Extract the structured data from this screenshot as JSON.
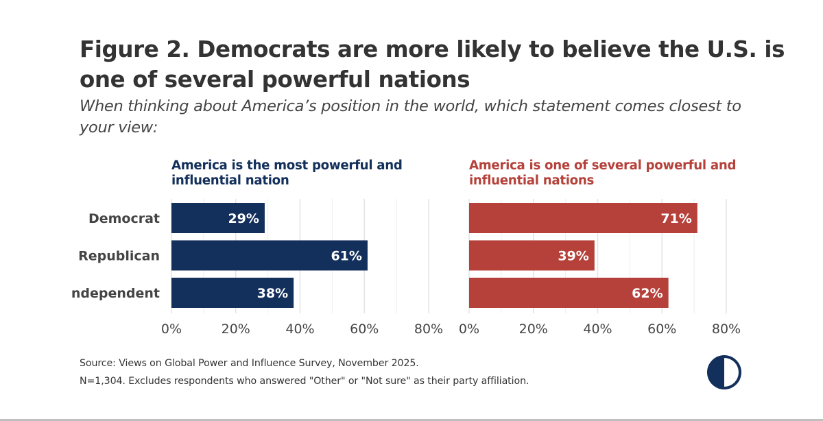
{
  "title": "Figure 2. Democrats are more likely to believe the U.S. is one of several powerful nations",
  "subtitle": "When thinking about America’s position in the world, which statement comes closest to your view:",
  "colors": {
    "navy": "#132f5b",
    "red": "#b5413a",
    "grid": "#e3e3e3",
    "text": "#333333"
  },
  "chart_data": [
    {
      "type": "bar",
      "orientation": "horizontal",
      "title": "America is the most powerful and influential nation",
      "title_lines": [
        "America is the most powerful and",
        "influential nation"
      ],
      "categories": [
        "Democrat",
        "Republican",
        "ndependent"
      ],
      "values": [
        29,
        61,
        38
      ],
      "value_labels": [
        "29%",
        "61%",
        "38%"
      ],
      "xlim": [
        0,
        80
      ],
      "ticks": [
        0,
        20,
        40,
        60,
        80
      ],
      "tick_labels": [
        "0%",
        "20%",
        "40%",
        "60%",
        "80%"
      ],
      "color": "#132f5b",
      "grid": true
    },
    {
      "type": "bar",
      "orientation": "horizontal",
      "title": "America is one of several powerful and influential nations",
      "title_lines": [
        "America is one of several powerful and",
        "influential nations"
      ],
      "categories": [
        "Democrat",
        "Republican",
        "ndependent"
      ],
      "values": [
        71,
        39,
        62
      ],
      "value_labels": [
        "71%",
        "39%",
        "62%"
      ],
      "xlim": [
        0,
        80
      ],
      "ticks": [
        0,
        20,
        40,
        60,
        80
      ],
      "tick_labels": [
        "0%",
        "20%",
        "40%",
        "60%",
        "80%"
      ],
      "color": "#b5413a",
      "grid": true
    }
  ],
  "footer": {
    "source": "Source: Views on Global Power and Influence Survey, November 2025.",
    "note": "N=1,304. Excludes respondents who answered \"Other\" or \"Not sure\" as their party affiliation."
  },
  "logo": {
    "icon": "half-circle-logo-icon",
    "colors": [
      "#132f5b",
      "#ffffff"
    ]
  }
}
